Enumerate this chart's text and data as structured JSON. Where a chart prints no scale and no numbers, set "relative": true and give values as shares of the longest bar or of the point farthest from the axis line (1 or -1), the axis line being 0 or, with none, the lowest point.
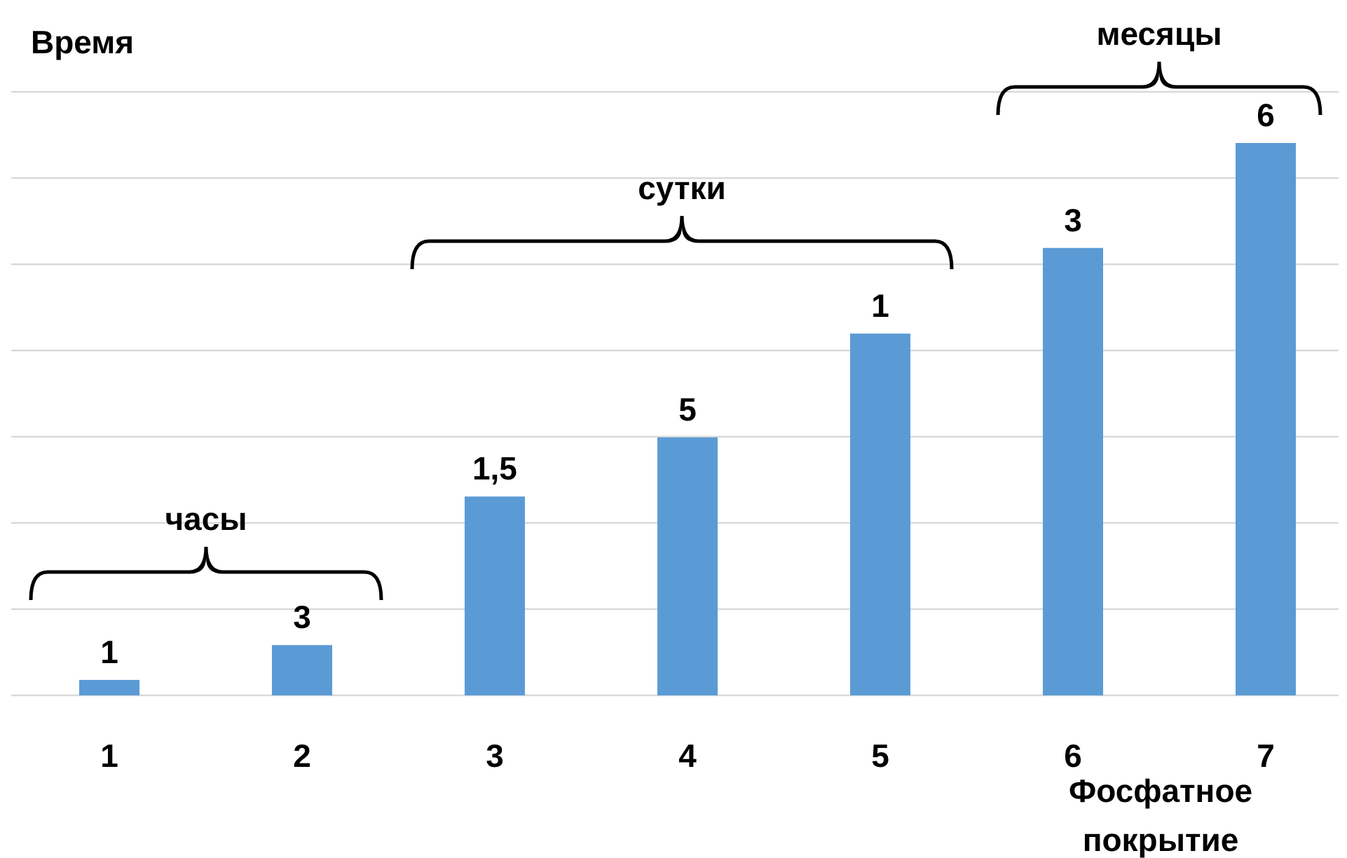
{
  "chart_data": {
    "type": "bar",
    "ylabel": "Время",
    "xlabel": "Фосфатное покрытие",
    "relative": true,
    "categories": [
      "1",
      "2",
      "3",
      "4",
      "5",
      "6",
      "7"
    ],
    "values": [
      0.028,
      0.091,
      0.36,
      0.467,
      0.655,
      0.81,
      1
    ],
    "color": "#5b9bd5",
    "grid": true,
    "annotations": [
      {
        "text": "1",
        "x": "1",
        "y": 0.028
      },
      {
        "text": "3",
        "x": "2",
        "y": 0.091
      },
      {
        "text": "1,5",
        "x": "3",
        "y": 0.36
      },
      {
        "text": "5",
        "x": "4",
        "y": 0.467
      },
      {
        "text": "1",
        "x": "5",
        "y": 0.655
      },
      {
        "text": "3",
        "x": "6",
        "y": 0.81
      },
      {
        "text": "6",
        "x": "7",
        "y": 1
      },
      "часы",
      "сутки",
      "месяцы"
    ]
  }
}
